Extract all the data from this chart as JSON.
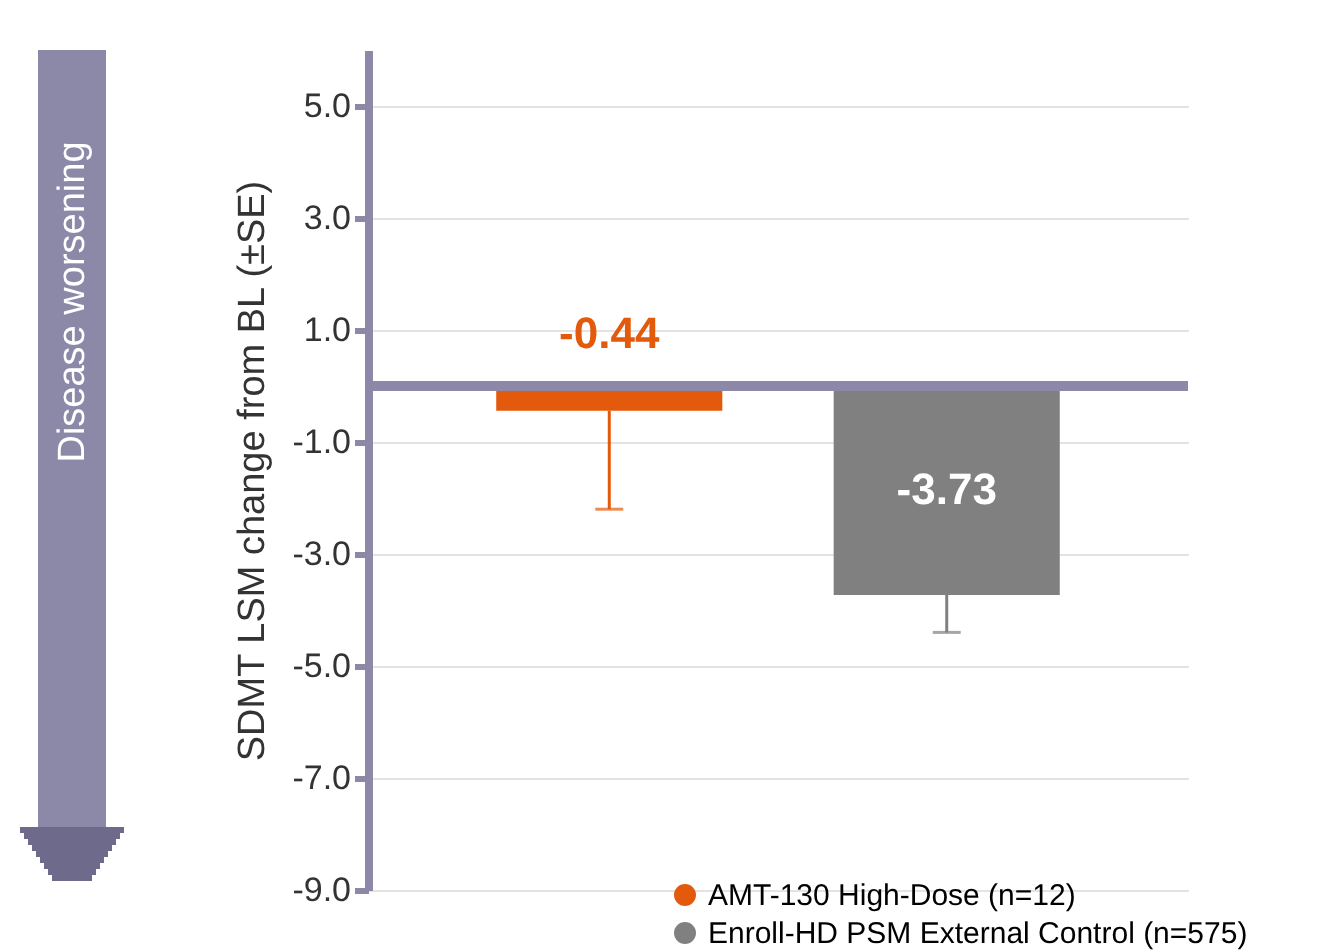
{
  "chart_data": {
    "type": "bar",
    "ylabel": "SDMT LSM change from BL (±SE)",
    "categories": [
      null,
      null
    ],
    "series": [
      {
        "name": "AMT-130 High-Dose (n=12)",
        "color": "#e35a0c",
        "values": [
          -0.44,
          null
        ],
        "errors": [
          [
            -2.2,
            -0.44
          ],
          null
        ]
      },
      {
        "name": "Enroll-HD PSM External Control (n=575)",
        "color": "#808080",
        "values": [
          null,
          -3.73
        ],
        "errors": [
          null,
          [
            -4.4,
            -3.73
          ]
        ]
      }
    ],
    "ylim": [
      -9,
      6
    ],
    "yticks": [
      {
        "value": -9,
        "label": "-9.0"
      },
      {
        "value": -7,
        "label": "-7.0"
      },
      {
        "value": -5,
        "label": "-5.0"
      },
      {
        "value": -3,
        "label": "-3.0"
      },
      {
        "value": -1,
        "label": "-1.0"
      },
      {
        "value": 1,
        "label": "1.0"
      },
      {
        "value": 3,
        "label": "3.0"
      },
      {
        "value": 5,
        "label": "5.0"
      }
    ],
    "ref_lines": [
      {
        "axis": "y",
        "value": 0,
        "color": "#8e88a8"
      }
    ],
    "annotations": [
      "Disease worsening"
    ],
    "data_labels": true,
    "grid": "y",
    "legend": "bottom right"
  }
}
